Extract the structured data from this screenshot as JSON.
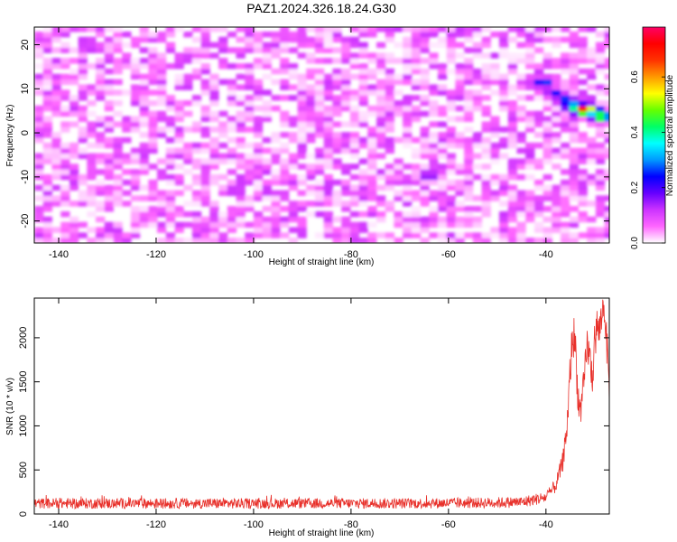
{
  "figure": {
    "title": "PAZ1.2024.326.18.24.G30"
  },
  "chart_data": [
    {
      "type": "heatmap",
      "title": "PAZ1.2024.326.18.24.G30",
      "xlabel": "Height of straight line (km)",
      "ylabel": "Frequency (Hz)",
      "xlim": [
        -145,
        -27
      ],
      "ylim": [
        -25,
        24
      ],
      "x_ticks": [
        -140,
        -120,
        -100,
        -80,
        -60,
        -40
      ],
      "y_ticks": [
        -20,
        -10,
        0,
        10,
        20
      ],
      "colorbar": {
        "label": "Normalized spectral amplitude",
        "range": [
          0,
          0.78
        ],
        "ticks": [
          0.0,
          0.2,
          0.4,
          0.6
        ],
        "tick_labels": [
          "0.0",
          "0.2",
          "0.4",
          "0.6"
        ],
        "colors": [
          "#ffffff",
          "#ff66ff",
          "#cc33ff",
          "#6600ff",
          "#0000ff",
          "#0099ff",
          "#00ffff",
          "#00ff66",
          "#66ff00",
          "#ffff00",
          "#ff9900",
          "#ff3300",
          "#ff0000",
          "#ff0066"
        ]
      },
      "background": {
        "level_range": [
          0.0,
          0.12
        ],
        "sampling": {
          "x_step": 1.8,
          "y_step": 1.2
        }
      },
      "features": [
        {
          "x": -40.5,
          "y": 11.5,
          "level": 0.3
        },
        {
          "x": -38,
          "y": 9,
          "level": 0.25
        },
        {
          "x": -36,
          "y": 7.5,
          "level": 0.3
        },
        {
          "x": -34,
          "y": 6,
          "level": 0.45
        },
        {
          "x": -32,
          "y": 5.3,
          "level": 0.78
        },
        {
          "x": -30,
          "y": 4.8,
          "level": 0.4
        },
        {
          "x": -28.5,
          "y": 3.8,
          "level": 0.55
        },
        {
          "x": -64,
          "y": -9.5,
          "level": 0.2
        }
      ],
      "grid": false
    },
    {
      "type": "line",
      "xlabel": "Height of straight line (km)",
      "ylabel": "SNR (10 * v/v)",
      "xlim": [
        -145,
        -27
      ],
      "ylim": [
        0,
        2450
      ],
      "x_ticks": [
        -140,
        -120,
        -100,
        -80,
        -60,
        -40
      ],
      "y_ticks": [
        0,
        500,
        1000,
        1500,
        2000
      ],
      "color": "#e8302a",
      "series": [
        {
          "x": [
            -145,
            -130,
            -110,
            -90,
            -70,
            -55,
            -45,
            -40,
            -38,
            -36.5,
            -35.5,
            -35,
            -34.5,
            -34,
            -33.5,
            -33,
            -32.5,
            -32,
            -31.5,
            -31,
            -30.5,
            -30,
            -29.5,
            -29,
            -28.5,
            -28,
            -27.5,
            -27
          ],
          "mean": [
            120,
            120,
            120,
            120,
            120,
            125,
            135,
            190,
            320,
            600,
            1100,
            1650,
            2050,
            1950,
            1400,
            1150,
            1300,
            1600,
            1950,
            1750,
            1550,
            1900,
            2150,
            2050,
            2300,
            2350,
            1900,
            1450
          ],
          "noise": [
            60,
            60,
            60,
            60,
            60,
            60,
            65,
            70,
            80,
            120,
            200,
            250,
            250,
            250,
            200,
            200,
            200,
            220,
            220,
            220,
            220,
            220,
            220,
            200,
            200,
            200,
            220,
            220
          ]
        }
      ],
      "grid": false
    }
  ]
}
